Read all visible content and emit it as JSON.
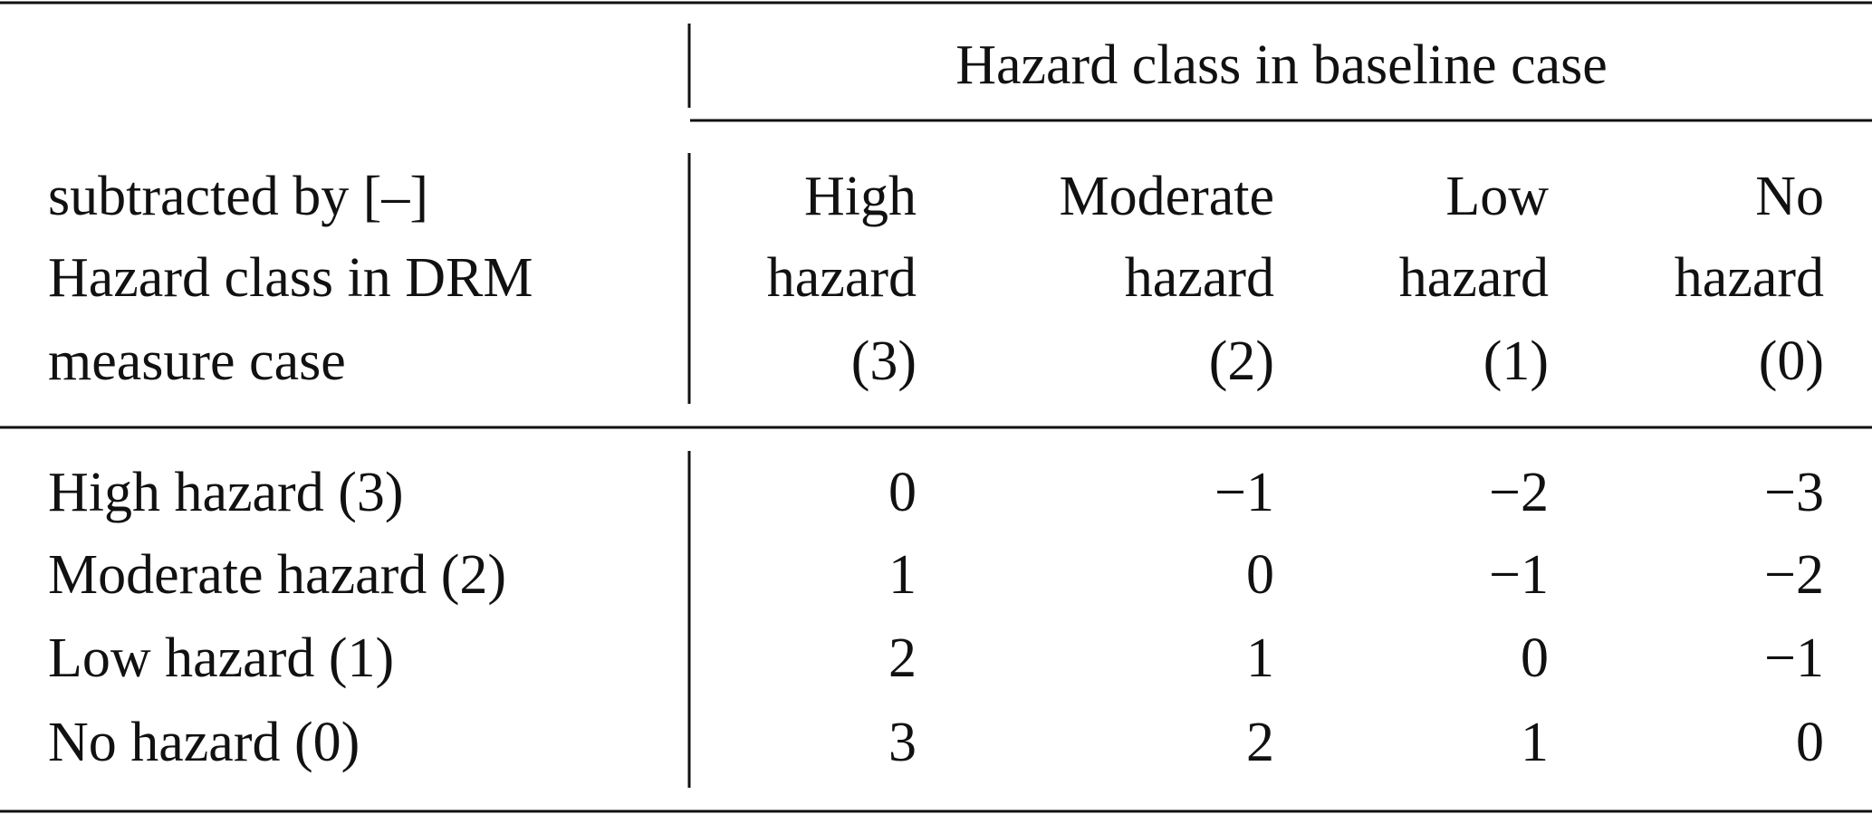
{
  "table": {
    "group_header": "Hazard class in baseline case",
    "row_header": [
      "subtracted by [–]",
      "Hazard class in DRM",
      "measure case"
    ],
    "columns": [
      [
        "High",
        "hazard",
        "(3)"
      ],
      [
        "Moderate",
        "hazard",
        "(2)"
      ],
      [
        "Low",
        "hazard",
        "(1)"
      ],
      [
        "No",
        "hazard",
        "(0)"
      ]
    ],
    "rows": [
      {
        "label": "High hazard (3)",
        "values": [
          "0",
          "−1",
          "−2",
          "−3"
        ]
      },
      {
        "label": "Moderate hazard (2)",
        "values": [
          "1",
          "0",
          "−1",
          "−2"
        ]
      },
      {
        "label": "Low hazard (1)",
        "values": [
          "2",
          "1",
          "0",
          "−1"
        ]
      },
      {
        "label": "No hazard (0)",
        "values": [
          "3",
          "2",
          "1",
          "0"
        ]
      }
    ]
  }
}
